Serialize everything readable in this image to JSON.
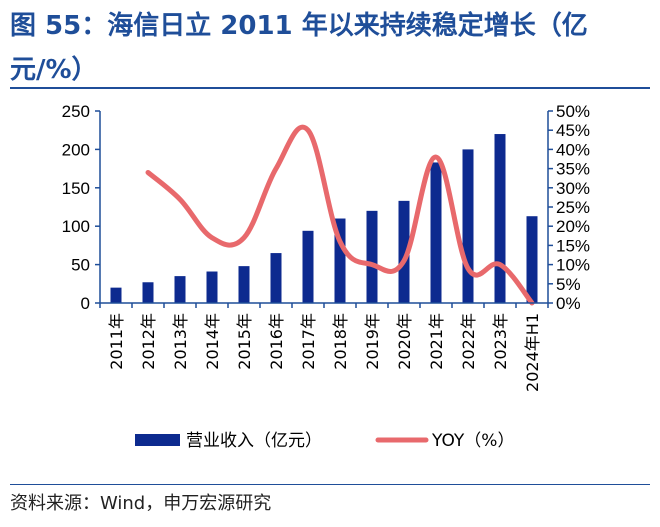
{
  "title": "图 55：海信日立 2011 年以来持续稳定增长（亿元/%）",
  "source": "资料来源：Wind，申万宏源研究",
  "colors": {
    "bar": "#0d2a8f",
    "line": "#e8696c",
    "title": "#1f4e99"
  },
  "chart_data": {
    "type": "bar",
    "categories": [
      "2011年",
      "2012年",
      "2013年",
      "2014年",
      "2015年",
      "2016年",
      "2017年",
      "2018年",
      "2019年",
      "2020年",
      "2021年",
      "2022年",
      "2023年",
      "2024年H1"
    ],
    "series": [
      {
        "name": "营业收入（亿元）",
        "type": "bar",
        "axis": "left",
        "values": [
          20,
          27,
          35,
          41,
          48,
          65,
          94,
          110,
          120,
          133,
          183,
          200,
          220,
          113
        ]
      },
      {
        "name": "YOY（%）",
        "type": "line",
        "axis": "right",
        "smooth": true,
        "values": [
          null,
          34,
          27,
          17,
          17,
          35,
          45,
          16,
          10,
          11,
          38,
          9,
          10,
          0
        ]
      }
    ],
    "y_left": {
      "ylim": [
        0,
        250
      ],
      "ticks": [
        "0",
        "50",
        "100",
        "150",
        "200",
        "250"
      ],
      "tick_values": [
        0,
        50,
        100,
        150,
        200,
        250
      ]
    },
    "y_right": {
      "ylim": [
        0,
        50
      ],
      "ticks": [
        "0%",
        "5%",
        "10%",
        "15%",
        "20%",
        "25%",
        "30%",
        "35%",
        "40%",
        "45%",
        "50%"
      ],
      "tick_values": [
        0,
        5,
        10,
        15,
        20,
        25,
        30,
        35,
        40,
        45,
        50
      ]
    },
    "legend_position": "bottom",
    "grid": false
  }
}
